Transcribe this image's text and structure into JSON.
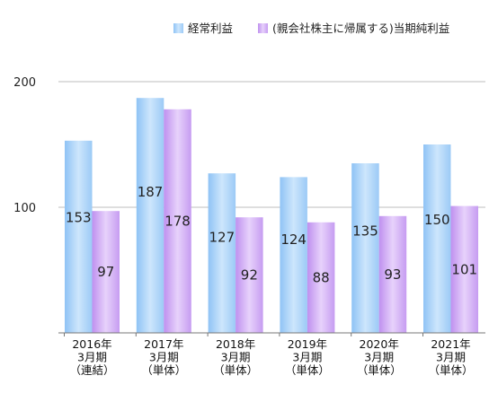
{
  "chart_data": {
    "type": "bar",
    "title": "",
    "xlabel": "",
    "ylabel": "",
    "categories": [
      [
        "2016年",
        "3月期",
        "（連結）"
      ],
      [
        "2017年",
        "3月期",
        "（単体）"
      ],
      [
        "2018年",
        "3月期",
        "（単体）"
      ],
      [
        "2019年",
        "3月期",
        "（単体）"
      ],
      [
        "2020年",
        "3月期",
        "（単体）"
      ],
      [
        "2021年",
        "3月期",
        "（単体）"
      ]
    ],
    "series": [
      {
        "name": "経常利益",
        "values": [
          153,
          187,
          127,
          124,
          135,
          150
        ],
        "color": "#a9d0f7"
      },
      {
        "name": "(親会社株主に帰属する)当期純利益",
        "values": [
          97,
          178,
          92,
          88,
          93,
          101
        ],
        "color": "#cfa6f3"
      }
    ],
    "ylim": [
      0,
      200
    ],
    "yticks": [
      100,
      200
    ],
    "grid": true,
    "legend": "top-right"
  }
}
